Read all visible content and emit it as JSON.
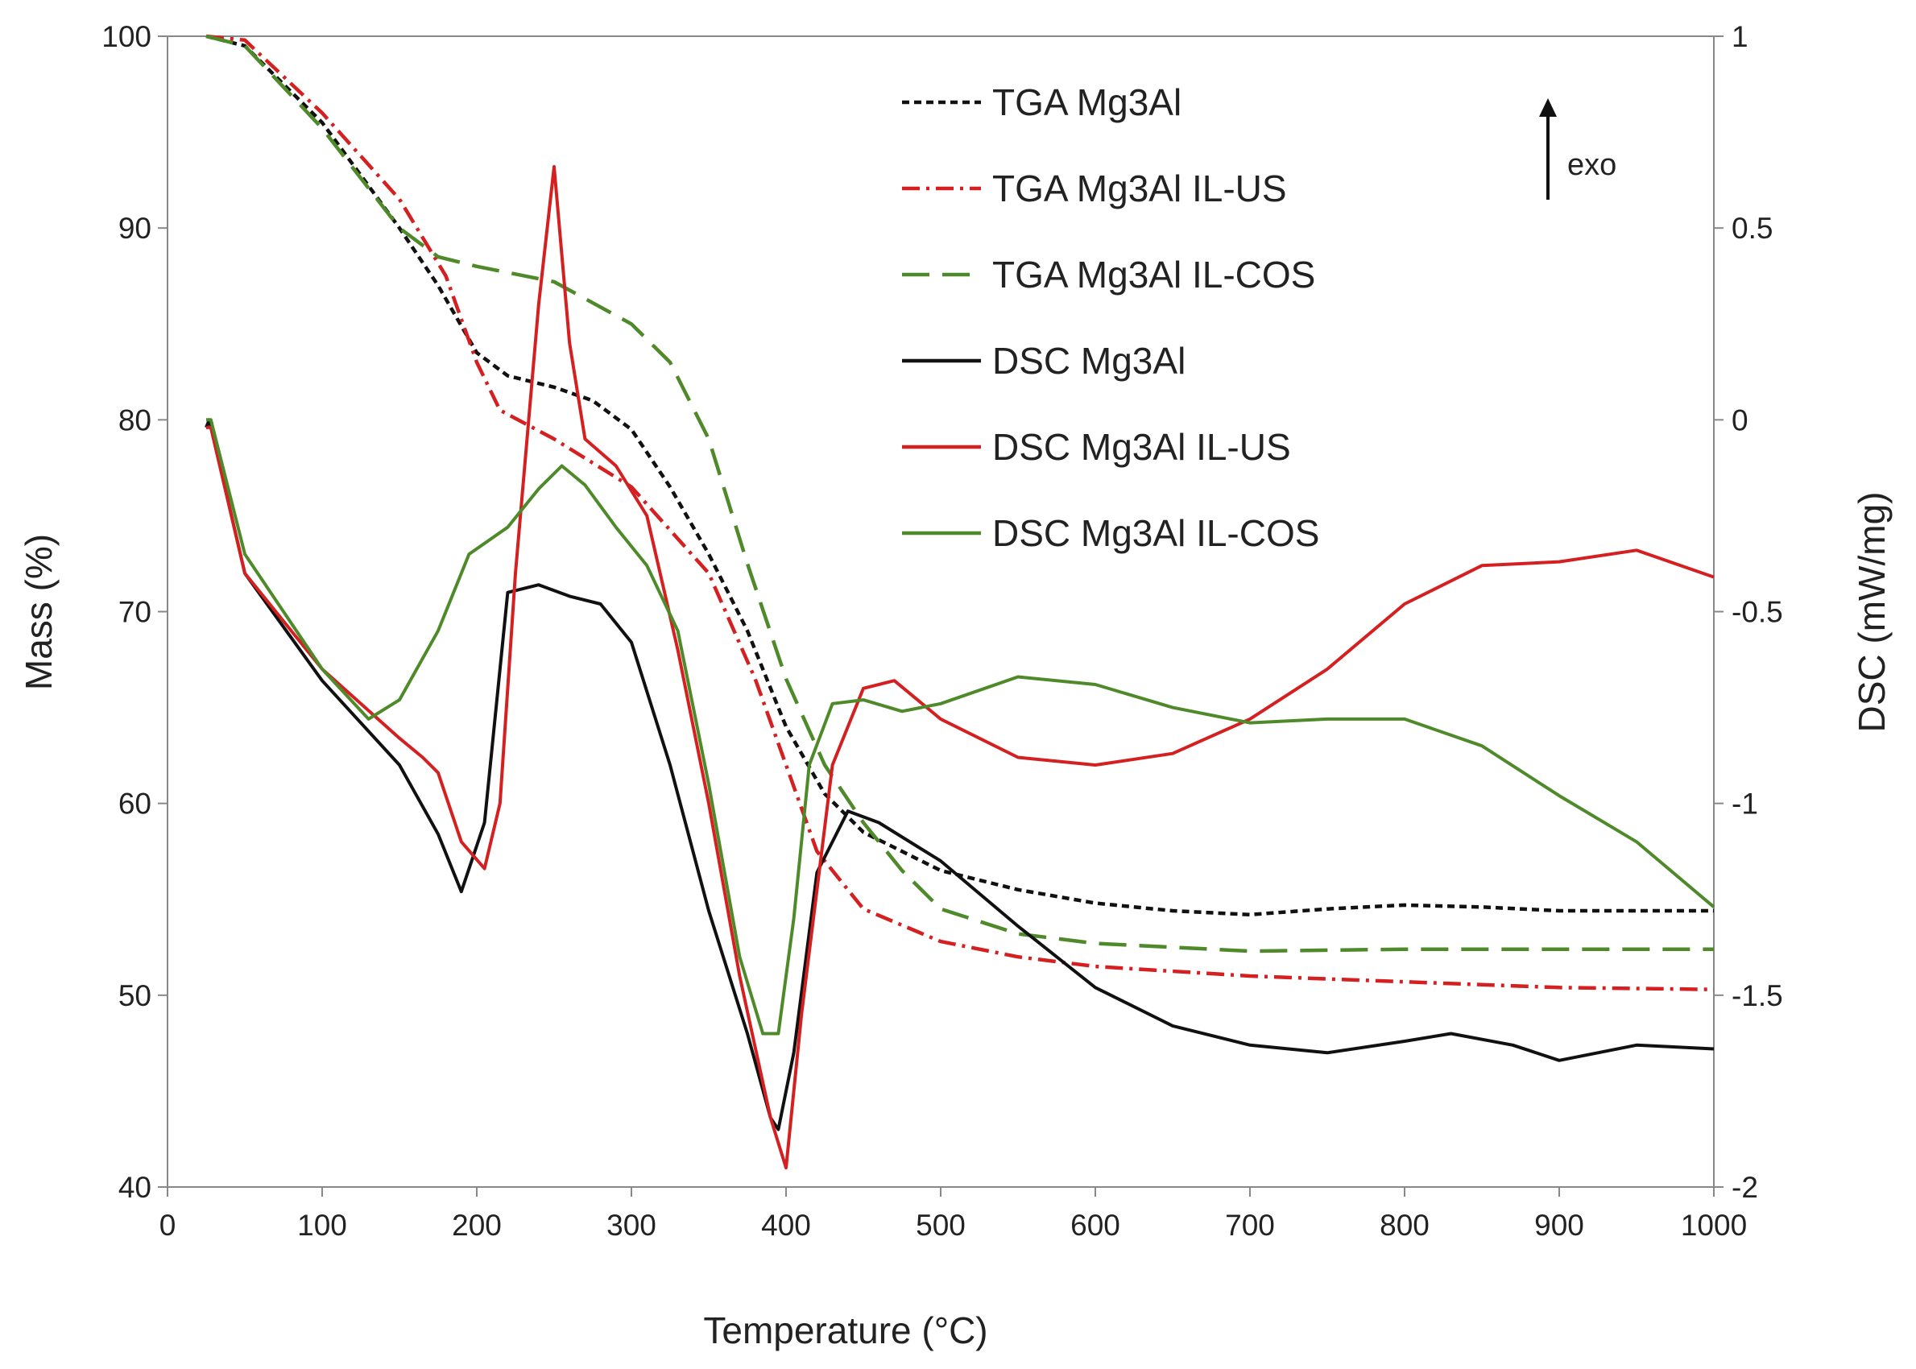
{
  "chart_data": {
    "type": "line",
    "title": "",
    "xlabel": "Temperature (°C)",
    "ylabel": "Mass (%)",
    "y2label": "DSC (mW/mg)",
    "xlim": [
      0,
      1000
    ],
    "ylim": [
      40,
      100
    ],
    "y2lim": [
      -2,
      1
    ],
    "xticks": [
      "0",
      "100",
      "200",
      "300",
      "400",
      "500",
      "600",
      "700",
      "800",
      "900",
      "1000"
    ],
    "yticks": [
      "40",
      "50",
      "60",
      "70",
      "80",
      "90",
      "100"
    ],
    "y2ticks": [
      "-2",
      "-1.5",
      "-1",
      "-0.5",
      "0",
      "0.5",
      "1"
    ],
    "grid": false,
    "legend_position": "top-center",
    "annotation": {
      "text": "exo",
      "arrow": "up"
    },
    "series": [
      {
        "name": "TGA Mg3Al",
        "axis": "left",
        "color": "#111111",
        "style": "dotted",
        "x": [
          25,
          50,
          100,
          150,
          175,
          200,
          220,
          250,
          275,
          300,
          325,
          350,
          375,
          400,
          425,
          450,
          475,
          500,
          550,
          600,
          650,
          700,
          750,
          800,
          850,
          900,
          950,
          1000
        ],
        "y": [
          100,
          99.5,
          95.5,
          90,
          87,
          83.5,
          82.3,
          81.7,
          81,
          79.5,
          76.5,
          73,
          69,
          64,
          60.5,
          58.5,
          57.5,
          56.5,
          55.5,
          54.8,
          54.4,
          54.2,
          54.5,
          54.7,
          54.6,
          54.4,
          54.4,
          54.4
        ]
      },
      {
        "name": "TGA Mg3Al IL-US",
        "axis": "left",
        "color": "#d42020",
        "style": "dashdot",
        "x": [
          25,
          50,
          100,
          150,
          180,
          200,
          215,
          250,
          300,
          350,
          380,
          400,
          420,
          450,
          500,
          550,
          600,
          700,
          800,
          900,
          1000
        ],
        "y": [
          100,
          99.8,
          96,
          91.5,
          87.5,
          83,
          80.5,
          79,
          76.5,
          72,
          66.5,
          62,
          57.5,
          54.5,
          52.8,
          52,
          51.5,
          51,
          50.7,
          50.4,
          50.3
        ]
      },
      {
        "name": "TGA Mg3Al IL-COS",
        "axis": "left",
        "color": "#4f8a2a",
        "style": "dashed",
        "x": [
          25,
          50,
          100,
          150,
          175,
          200,
          250,
          300,
          325,
          350,
          375,
          400,
          425,
          450,
          475,
          500,
          550,
          600,
          700,
          800,
          900,
          1000
        ],
        "y": [
          100,
          99.5,
          95.2,
          90,
          88.5,
          88,
          87.2,
          85,
          83,
          79,
          72.5,
          66.5,
          62,
          59,
          56.5,
          54.5,
          53.2,
          52.7,
          52.3,
          52.4,
          52.4,
          52.4
        ]
      },
      {
        "name": "DSC Mg3Al",
        "axis": "right",
        "color": "#111111",
        "style": "solid",
        "x": [
          25,
          27,
          50,
          100,
          150,
          175,
          190,
          205,
          220,
          240,
          260,
          280,
          300,
          325,
          350,
          375,
          390,
          395,
          405,
          420,
          440,
          460,
          500,
          550,
          600,
          650,
          700,
          750,
          800,
          830,
          870,
          900,
          950,
          1000
        ],
        "y": [
          -0.02,
          0,
          -0.4,
          -0.68,
          -0.9,
          -1.08,
          -1.23,
          -1.05,
          -0.45,
          -0.43,
          -0.46,
          -0.48,
          -0.58,
          -0.9,
          -1.28,
          -1.6,
          -1.82,
          -1.85,
          -1.65,
          -1.18,
          -1.02,
          -1.05,
          -1.15,
          -1.32,
          -1.48,
          -1.58,
          -1.63,
          -1.65,
          -1.62,
          -1.6,
          -1.63,
          -1.67,
          -1.63,
          -1.64
        ]
      },
      {
        "name": "DSC Mg3Al IL-US",
        "axis": "right",
        "color": "#d42020",
        "style": "solid",
        "x": [
          25,
          28,
          50,
          100,
          150,
          165,
          175,
          190,
          205,
          215,
          225,
          240,
          250,
          260,
          270,
          290,
          310,
          330,
          350,
          370,
          390,
          400,
          410,
          430,
          450,
          470,
          500,
          550,
          600,
          650,
          700,
          750,
          800,
          850,
          900,
          950,
          1000
        ],
        "y": [
          -0.02,
          -0.02,
          -0.4,
          -0.65,
          -0.83,
          -0.88,
          -0.92,
          -1.1,
          -1.17,
          -1.0,
          -0.4,
          0.3,
          0.66,
          0.2,
          -0.05,
          -0.12,
          -0.25,
          -0.6,
          -1.0,
          -1.45,
          -1.82,
          -1.95,
          -1.55,
          -0.9,
          -0.7,
          -0.68,
          -0.78,
          -0.88,
          -0.9,
          -0.87,
          -0.78,
          -0.65,
          -0.48,
          -0.38,
          -0.37,
          -0.34,
          -0.41
        ]
      },
      {
        "name": "DSC Mg3Al IL-COS",
        "axis": "right",
        "color": "#4f8a2a",
        "style": "solid",
        "x": [
          25,
          28,
          50,
          100,
          130,
          150,
          175,
          195,
          220,
          240,
          255,
          270,
          290,
          310,
          330,
          350,
          370,
          385,
          395,
          405,
          415,
          430,
          450,
          475,
          500,
          550,
          600,
          650,
          700,
          750,
          800,
          850,
          900,
          950,
          1000
        ],
        "y": [
          0,
          0,
          -0.35,
          -0.65,
          -0.78,
          -0.73,
          -0.55,
          -0.35,
          -0.28,
          -0.18,
          -0.12,
          -0.17,
          -0.28,
          -0.38,
          -0.55,
          -0.95,
          -1.4,
          -1.6,
          -1.6,
          -1.3,
          -0.9,
          -0.74,
          -0.73,
          -0.76,
          -0.74,
          -0.67,
          -0.69,
          -0.75,
          -0.79,
          -0.78,
          -0.78,
          -0.85,
          -0.98,
          -1.1,
          -1.27
        ]
      }
    ]
  }
}
